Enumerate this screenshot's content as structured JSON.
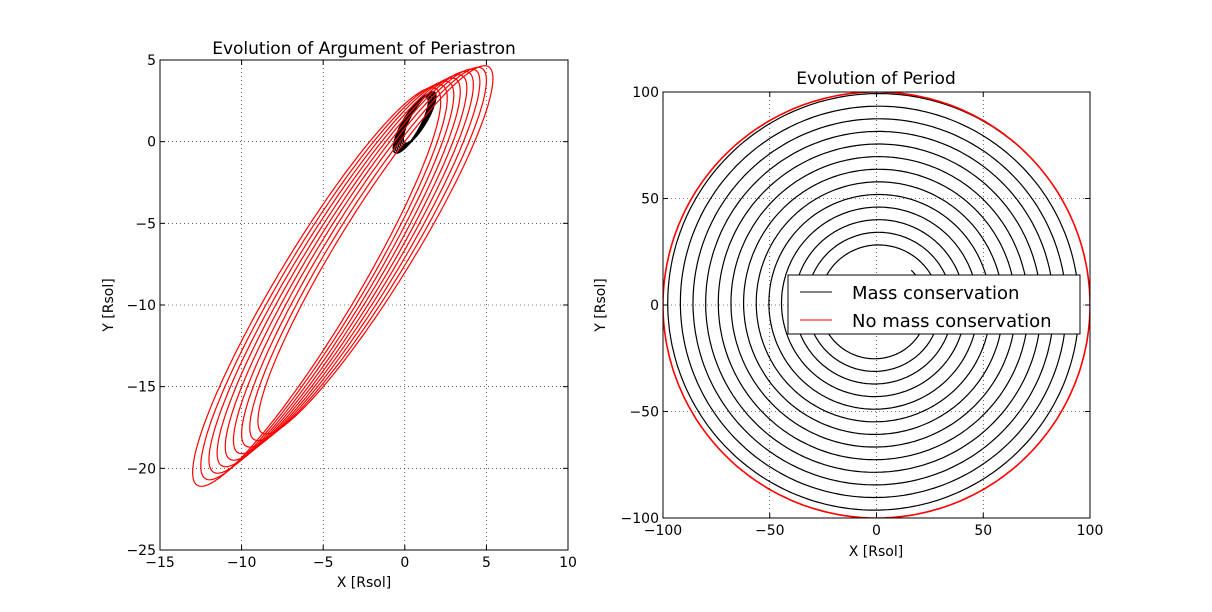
{
  "chart_data": [
    {
      "type": "line",
      "title": "Evolution of Argument of Periastron",
      "xlabel": "X [Rsol]",
      "ylabel": "Y [Rsol]",
      "xlim": [
        -15,
        10
      ],
      "ylim": [
        -25,
        5
      ],
      "xticks": [
        -15,
        -10,
        -5,
        0,
        5,
        10
      ],
      "yticks": [
        -25,
        -20,
        -15,
        -10,
        -5,
        0,
        5
      ],
      "xtick_labels": [
        "−15",
        "−10",
        "−5",
        "0",
        "5",
        "10"
      ],
      "ytick_labels": [
        "−25",
        "−20",
        "−15",
        "−10",
        "−5",
        "0",
        "5"
      ],
      "grid": true,
      "series": [
        {
          "color": "#000000",
          "description": "7 ellipses with focus near origin",
          "ellipses": [
            {
              "x_min": -0.7,
              "x_max": 1.45,
              "y_min": -0.7,
              "y_max": 2.75
            },
            {
              "x_min": -0.6,
              "x_max": 1.55,
              "y_min": -0.6,
              "y_max": 2.8
            },
            {
              "x_min": -0.5,
              "x_max": 1.6,
              "y_min": -0.5,
              "y_max": 2.85
            },
            {
              "x_min": -0.4,
              "x_max": 1.7,
              "y_min": -0.4,
              "y_max": 2.9
            },
            {
              "x_min": -0.3,
              "x_max": 1.75,
              "y_min": -0.3,
              "y_max": 2.95
            },
            {
              "x_min": -0.2,
              "x_max": 1.85,
              "y_min": -0.2,
              "y_max": 3.0
            },
            {
              "x_min": -0.1,
              "x_max": 1.9,
              "y_min": -0.1,
              "y_max": 3.05
            }
          ]
        },
        {
          "color": "#ff0000",
          "description": "9 elongated precessing ellipses",
          "ellipses": [
            {
              "x_min": -13.0,
              "x_max": 2.2,
              "y_min": -21.1,
              "y_max": 3.3
            },
            {
              "x_min": -12.5,
              "x_max": 2.6,
              "y_min": -20.7,
              "y_max": 3.5
            },
            {
              "x_min": -12.0,
              "x_max": 3.0,
              "y_min": -20.3,
              "y_max": 3.7
            },
            {
              "x_min": -11.5,
              "x_max": 3.4,
              "y_min": -19.9,
              "y_max": 3.9
            },
            {
              "x_min": -11.0,
              "x_max": 3.8,
              "y_min": -19.5,
              "y_max": 4.1
            },
            {
              "x_min": -10.5,
              "x_max": 4.2,
              "y_min": -19.1,
              "y_max": 4.3
            },
            {
              "x_min": -10.0,
              "x_max": 4.6,
              "y_min": -18.7,
              "y_max": 4.45
            },
            {
              "x_min": -9.5,
              "x_max": 5.0,
              "y_min": -18.3,
              "y_max": 4.55
            },
            {
              "x_min": -9.0,
              "x_max": 5.4,
              "y_min": -17.9,
              "y_max": 4.65
            }
          ]
        }
      ]
    },
    {
      "type": "line",
      "title": "Evolution of Period",
      "xlabel": "X [Rsol]",
      "ylabel": "Y [Rsol]",
      "xlim": [
        -100,
        100
      ],
      "ylim": [
        -100,
        100
      ],
      "xticks": [
        -100,
        -50,
        0,
        50,
        100
      ],
      "yticks": [
        -100,
        -50,
        0,
        50,
        100
      ],
      "xtick_labels": [
        "−100",
        "−50",
        "0",
        "50",
        "100"
      ],
      "ytick_labels": [
        "−100",
        "−50",
        "0",
        "50",
        "100"
      ],
      "grid": true,
      "legend_position": "center-right",
      "legend": [
        {
          "label": "Mass conservation",
          "color": "#000000"
        },
        {
          "label": "No mass conservation",
          "color": "#ff0000"
        }
      ],
      "series": [
        {
          "name": "Mass conservation",
          "color": "#000000",
          "description": "spiral orbit, radius growing from about 23 to 100",
          "start_radius": 23,
          "end_radius": 100,
          "turns": 13
        },
        {
          "name": "No mass conservation",
          "color": "#ff0000",
          "description": "circular orbit of radius about 100",
          "radius": 100
        }
      ]
    }
  ]
}
